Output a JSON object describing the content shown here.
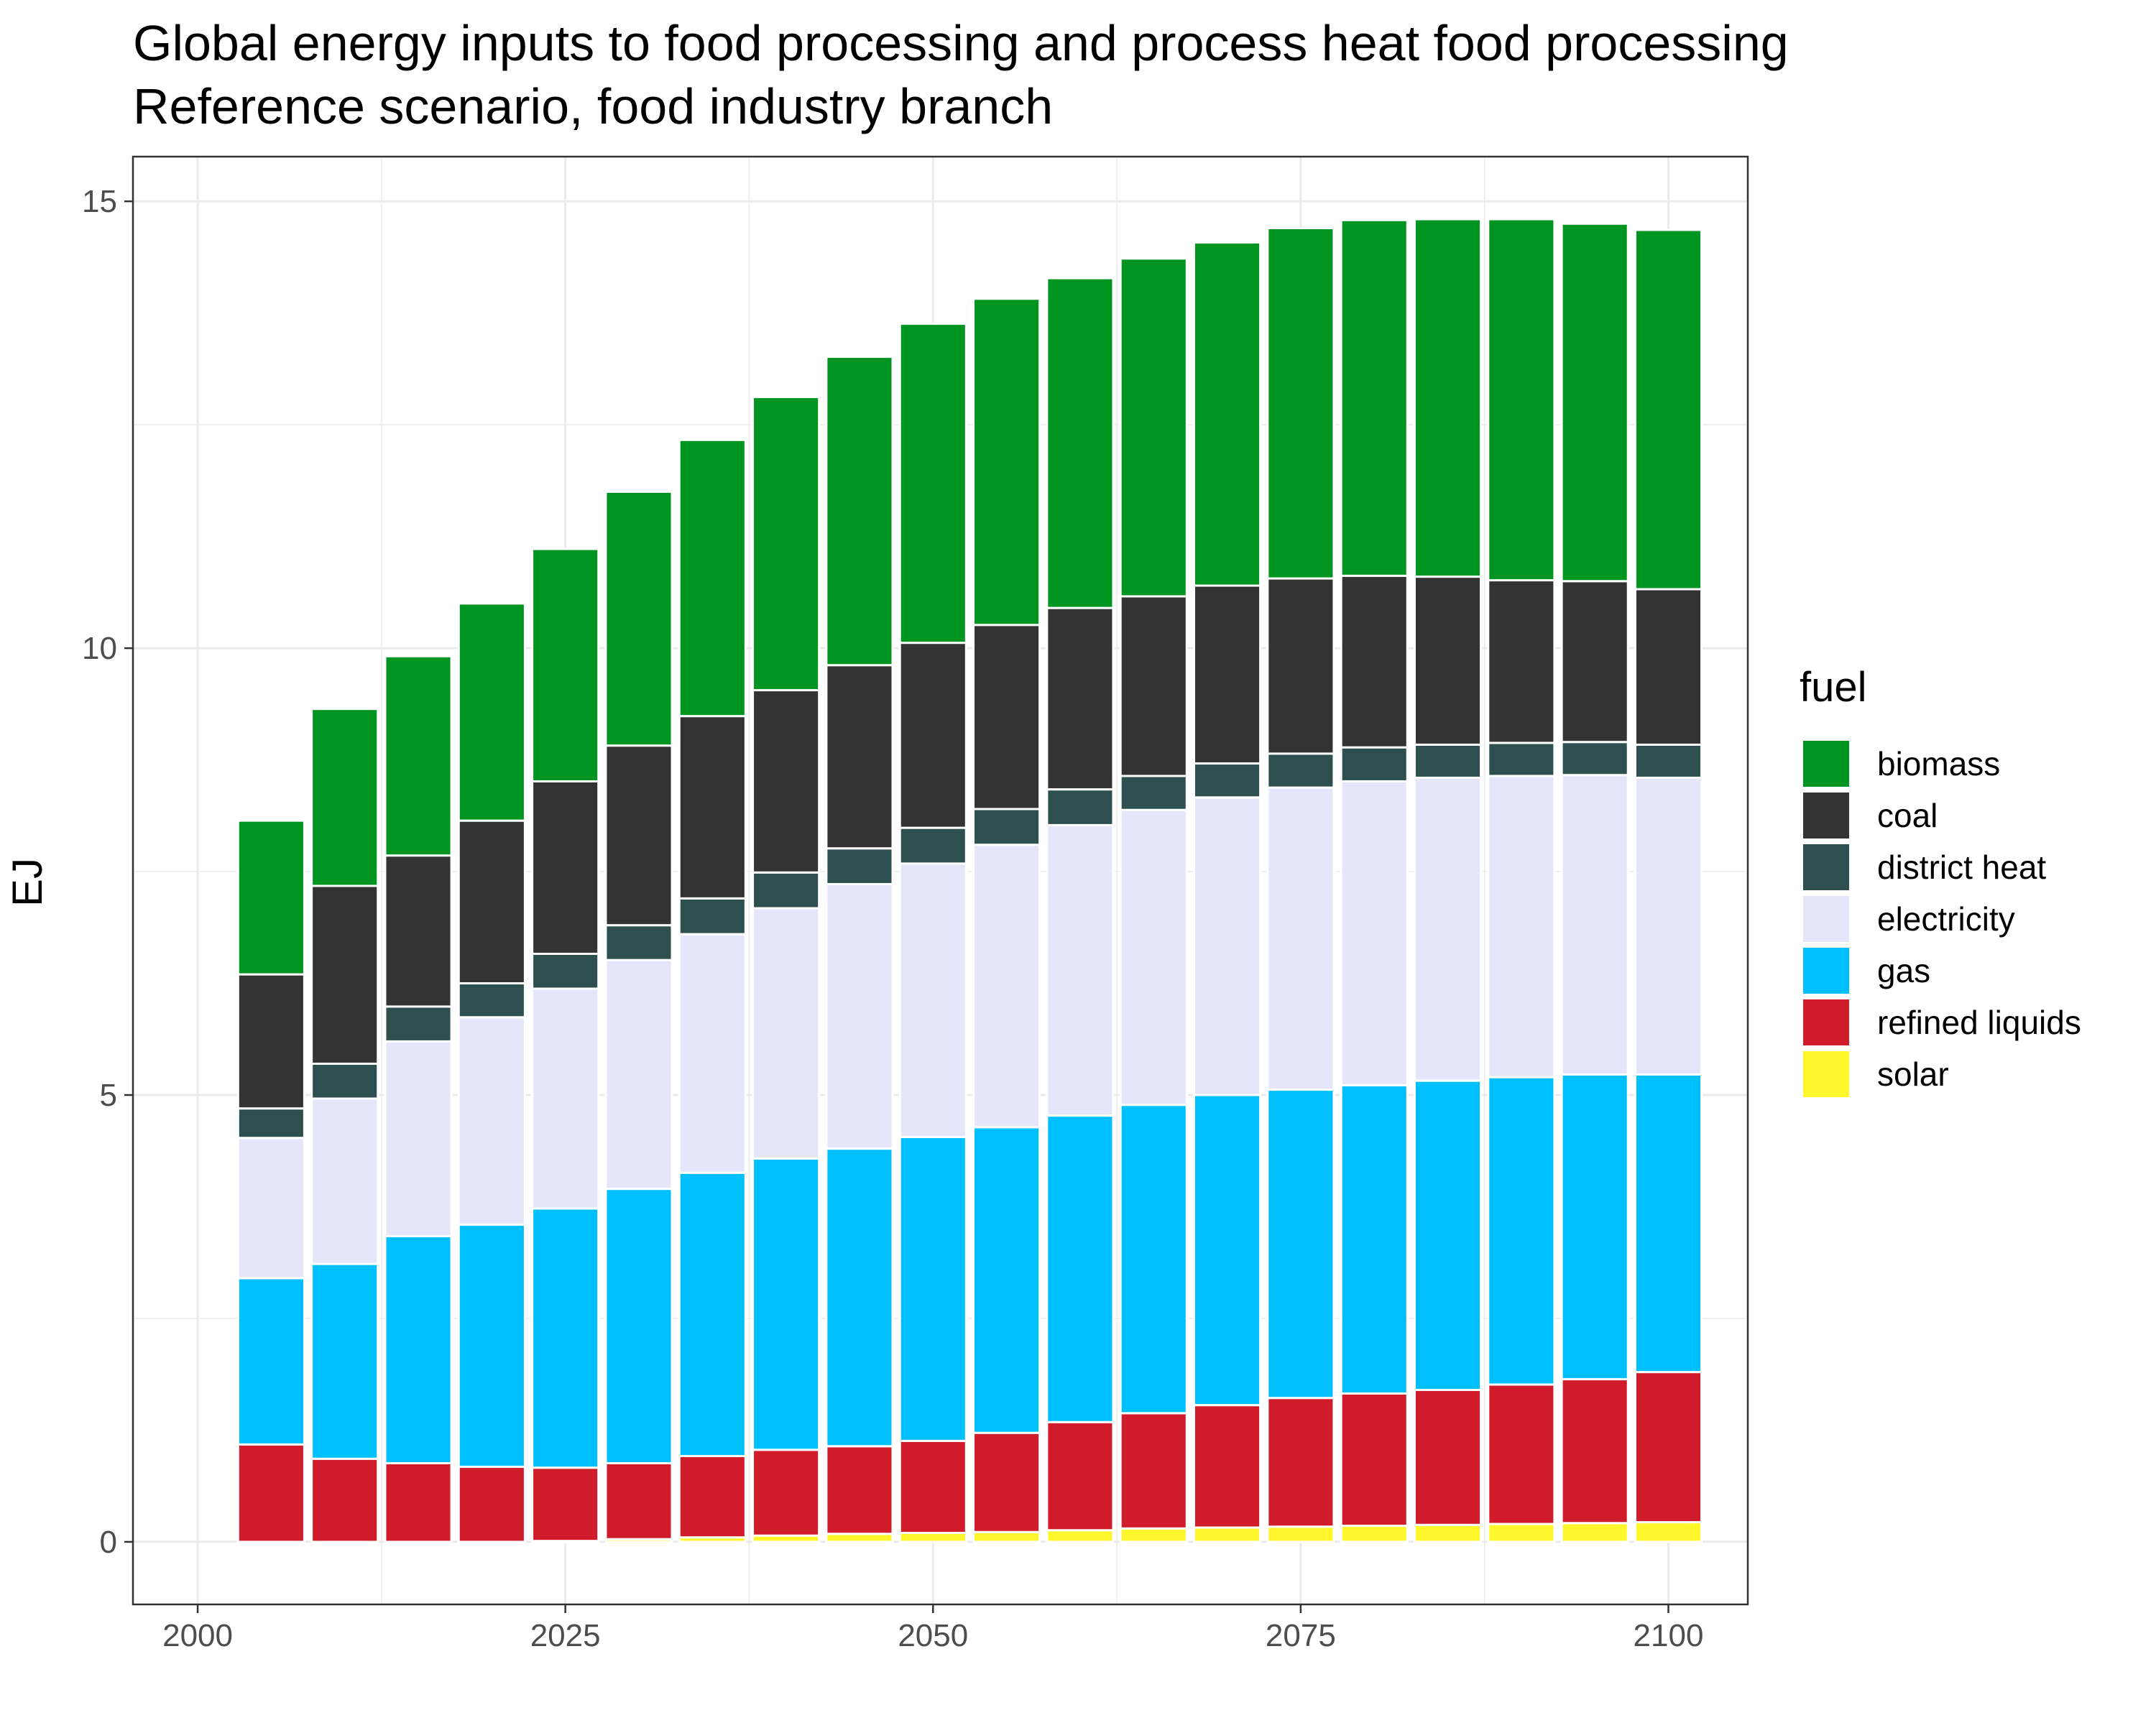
{
  "chart_data": {
    "type": "bar",
    "stacked": true,
    "title": "Global energy inputs to food processing and process heat food processing",
    "subtitle": "Reference scenario, food industry branch",
    "xlabel": "",
    "ylabel": "EJ",
    "xlim": [
      1995.6,
      2105.4
    ],
    "ylim": [
      -0.7,
      15.5
    ],
    "x_ticks": [
      "2000",
      "2025",
      "2050",
      "2075",
      "2100"
    ],
    "x_tick_values": [
      2000,
      2025,
      2050,
      2075,
      2100
    ],
    "y_ticks": [
      "0",
      "5",
      "10",
      "15"
    ],
    "y_tick_values": [
      0,
      5,
      10,
      15
    ],
    "grid": true,
    "legend_title": "fuel",
    "legend_position": "right",
    "x": [
      2005,
      2010,
      2015,
      2020,
      2025,
      2030,
      2035,
      2040,
      2045,
      2050,
      2055,
      2060,
      2065,
      2070,
      2075,
      2080,
      2085,
      2090,
      2095,
      2100
    ],
    "series": [
      {
        "name": "solar",
        "color": "#FFF72B",
        "values": [
          0,
          0,
          0,
          0,
          0.01,
          0.03,
          0.05,
          0.07,
          0.09,
          0.1,
          0.11,
          0.13,
          0.15,
          0.16,
          0.17,
          0.18,
          0.19,
          0.2,
          0.21,
          0.22
        ]
      },
      {
        "name": "refined liquids",
        "color": "#D01C2A",
        "values": [
          1.09,
          0.93,
          0.88,
          0.84,
          0.82,
          0.85,
          0.91,
          0.96,
          0.98,
          1.03,
          1.11,
          1.21,
          1.29,
          1.37,
          1.44,
          1.48,
          1.51,
          1.56,
          1.61,
          1.68
        ]
      },
      {
        "name": "gas",
        "color": "#00BFFF",
        "values": [
          1.86,
          2.18,
          2.54,
          2.71,
          2.9,
          3.07,
          3.17,
          3.26,
          3.33,
          3.4,
          3.42,
          3.43,
          3.45,
          3.47,
          3.45,
          3.45,
          3.46,
          3.44,
          3.41,
          3.33
        ]
      },
      {
        "name": "electricity",
        "color": "#E6E6FA",
        "values": [
          1.57,
          1.85,
          2.18,
          2.32,
          2.46,
          2.56,
          2.67,
          2.8,
          2.96,
          3.06,
          3.16,
          3.25,
          3.3,
          3.33,
          3.38,
          3.4,
          3.39,
          3.37,
          3.35,
          3.32
        ]
      },
      {
        "name": "district heat",
        "color": "#2E4F4F",
        "values": [
          0.33,
          0.39,
          0.39,
          0.38,
          0.39,
          0.39,
          0.4,
          0.4,
          0.4,
          0.4,
          0.4,
          0.4,
          0.38,
          0.38,
          0.38,
          0.38,
          0.37,
          0.37,
          0.37,
          0.37
        ]
      },
      {
        "name": "coal",
        "color": "#333333",
        "values": [
          1.5,
          1.99,
          1.69,
          1.82,
          1.93,
          2.01,
          2.04,
          2.04,
          2.05,
          2.07,
          2.06,
          2.03,
          2.01,
          1.99,
          1.96,
          1.92,
          1.88,
          1.82,
          1.8,
          1.74
        ]
      },
      {
        "name": "biomass",
        "color": "#009420",
        "values": [
          1.72,
          1.98,
          2.23,
          2.43,
          2.6,
          2.84,
          3.09,
          3.28,
          3.45,
          3.57,
          3.65,
          3.69,
          3.78,
          3.84,
          3.92,
          3.98,
          4.0,
          4.04,
          4.0,
          4.02
        ]
      }
    ]
  }
}
